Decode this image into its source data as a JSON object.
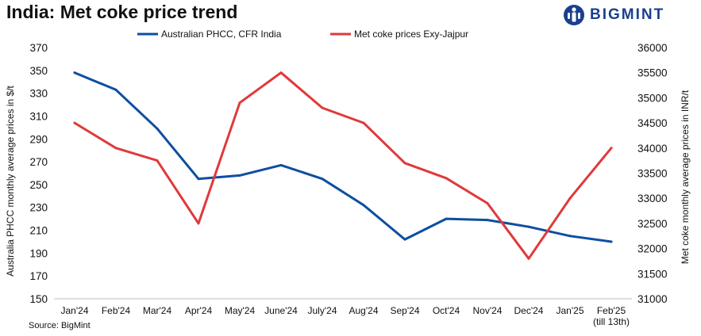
{
  "title": "India: Met coke price trend",
  "brand": "BIGMINT",
  "source": "Source: BigMint",
  "colors": {
    "series1": "#0e4ea1",
    "series2": "#e0393b",
    "brand": "#1b3f8f"
  },
  "chart_data": {
    "type": "line",
    "categories": [
      "Jan'24",
      "Feb'24",
      "Mar'24",
      "Apr'24",
      "May'24",
      "June'24",
      "July'24",
      "Aug'24",
      "Sep'24",
      "Oct'24",
      "Nov'24",
      "Dec'24",
      "Jan'25",
      "Feb'25"
    ],
    "category_notes": [
      "",
      "",
      "",
      "",
      "",
      "",
      "",
      "",
      "",
      "",
      "",
      "",
      "",
      "(till 13th)"
    ],
    "series": [
      {
        "name": "Australian PHCC, CFR India",
        "axis": "left",
        "color": "#0e4ea1",
        "values": [
          348,
          333,
          299,
          255,
          258,
          267,
          255,
          232,
          202,
          220,
          219,
          213,
          205,
          200
        ]
      },
      {
        "name": "Met coke prices Exy-Jajpur",
        "axis": "right",
        "color": "#e0393b",
        "values": [
          34500,
          34000,
          33750,
          32500,
          34900,
          35500,
          34800,
          34500,
          33700,
          33400,
          32900,
          31800,
          33000,
          34000
        ]
      }
    ],
    "y_left": {
      "label": "Australia PHCC monthly average prices in $/t",
      "min": 150,
      "max": 370,
      "ticks": [
        150,
        170,
        190,
        210,
        230,
        250,
        270,
        290,
        310,
        330,
        350,
        370
      ]
    },
    "y_right": {
      "label": "Met coke monthly average prices in INR/t",
      "min": 31000,
      "max": 36000,
      "ticks": [
        31000,
        31500,
        32000,
        32500,
        33000,
        33500,
        34000,
        34500,
        35000,
        35500,
        36000
      ]
    },
    "legend_position": "top",
    "grid": false
  }
}
